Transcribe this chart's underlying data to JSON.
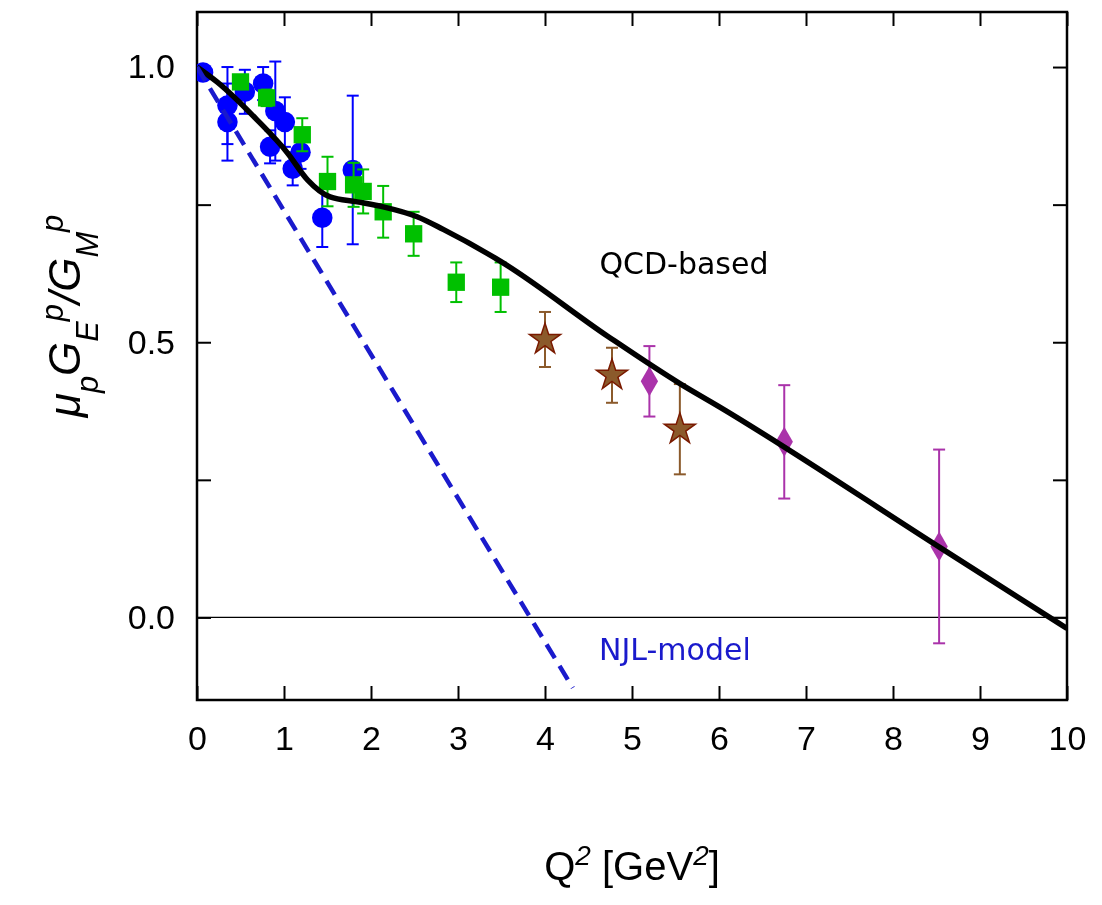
{
  "chart_data": {
    "type": "scatter",
    "xlabel": "Q$^{2}$ [GeV$^{2}$]",
    "ylabel": "μ$_{p}$G$_{E}$$^{p}$/G$_{M}$$^{p}$",
    "xlim": [
      0,
      10
    ],
    "ylim": [
      -0.15,
      1.1
    ],
    "xticks": [
      0,
      1,
      2,
      3,
      4,
      5,
      6,
      7,
      8,
      9,
      10
    ],
    "yticks": [
      {
        "value": 0,
        "label": "0.0"
      },
      {
        "value": 0.25,
        "label": null
      },
      {
        "value": 0.5,
        "label": "0.5"
      },
      {
        "value": 0.75,
        "label": null
      },
      {
        "value": 1,
        "label": "1.0"
      }
    ],
    "grid": false,
    "ref_lines": [
      {
        "axis": "y",
        "value": 0,
        "label": null,
        "color": "#000000",
        "line_style": "solid"
      }
    ],
    "series": [
      {
        "marker": "circle",
        "color": "#0000ff",
        "x": [
          0.07,
          0.35,
          0.35,
          0.55,
          0.76,
          0.84,
          0.9,
          1.01,
          1.1,
          1.19,
          1.44,
          1.79
        ],
        "values": [
          0.99,
          0.93,
          0.9,
          0.955,
          0.97,
          0.855,
          0.92,
          0.9,
          0.815,
          0.845,
          0.726,
          0.813
        ],
        "errors": [
          null,
          0.07,
          0.07,
          0.04,
          0.03,
          0.03,
          0.09,
          0.045,
          0.03,
          0.03,
          0.053,
          0.135
        ]
      },
      {
        "marker": "square",
        "color": "#00c000",
        "x": [
          0.5,
          0.8,
          1.21,
          1.5,
          1.8,
          1.91,
          2.14,
          2.49,
          2.98,
          3.49
        ],
        "values": [
          0.973,
          0.944,
          0.877,
          0.792,
          0.786,
          0.774,
          0.737,
          0.697,
          0.609,
          0.6
        ],
        "errors": [
          0.01,
          0.015,
          0.03,
          0.045,
          0.04,
          0.04,
          0.047,
          0.04,
          0.036,
          0.045
        ]
      },
      {
        "marker": "star",
        "color": "#8b5a2b",
        "x": [
          4.0,
          4.77,
          5.55
        ],
        "values": [
          0.505,
          0.44,
          0.342
        ],
        "errors": [
          0.05,
          0.05,
          0.082
        ]
      },
      {
        "marker": "diamond",
        "color": "#aa33aa",
        "x": [
          5.2,
          6.75,
          8.53
        ],
        "values": [
          0.429,
          0.319,
          0.129
        ],
        "errors": [
          0.064,
          0.103,
          0.176
        ]
      },
      {
        "type": "line",
        "name": "QCD-based",
        "color": "#000000",
        "line_style": "solid",
        "marker": "none",
        "x": [
          0,
          0.23,
          0.69,
          1.04,
          1.27,
          1.53,
          1.84,
          2.14,
          2.53,
          2.83,
          3.49,
          4.72,
          5.56,
          5.99,
          8.56,
          10
        ],
        "values": [
          1.0,
          0.973,
          0.904,
          0.844,
          0.795,
          0.764,
          0.755,
          0.746,
          0.728,
          0.705,
          0.647,
          0.511,
          0.424,
          0.384,
          0.125,
          -0.02
        ]
      },
      {
        "type": "line",
        "name": "NJL-model",
        "color": "#1a1acc",
        "line_style": "dashed",
        "marker": "none",
        "x": [
          0,
          4.32
        ],
        "values": [
          1.0,
          -0.128
        ]
      }
    ]
  }
}
